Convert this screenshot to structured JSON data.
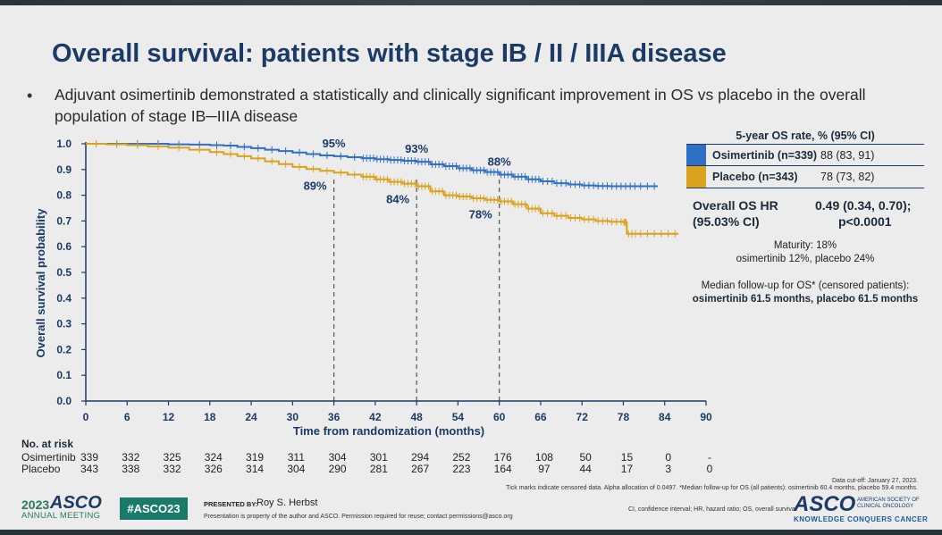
{
  "title": "Overall survival: patients with stage IB / II / IIIA disease",
  "bullet": "Adjuvant osimertinib demonstrated a statistically and clinically significant improvement in OS vs placebo in the overall population of stage IB─IIIA disease",
  "colors": {
    "osimertinib": "#2f6fc4",
    "placebo": "#d9a21f",
    "navy": "#1b3a66"
  },
  "chart_data": {
    "type": "line",
    "title": "Overall survival: patients with stage IB / II / IIIA disease",
    "xlabel": "Time from randomization (months)",
    "ylabel": "Overall survival probability",
    "xlim": [
      0,
      90
    ],
    "ylim": [
      0,
      1.0
    ],
    "x_ticks": [
      "0",
      "6",
      "12",
      "18",
      "24",
      "30",
      "36",
      "42",
      "48",
      "54",
      "60",
      "66",
      "72",
      "78",
      "84",
      "90"
    ],
    "y_ticks": [
      "0.0",
      "0.1",
      "0.2",
      "0.3",
      "0.4",
      "0.5",
      "0.6",
      "0.7",
      "0.8",
      "0.9",
      "1.0"
    ],
    "reference_lines_x": [
      36,
      48,
      60
    ],
    "series": [
      {
        "name": "Osimertinib",
        "x": [
          0,
          3,
          6,
          9,
          12,
          15,
          18,
          20,
          22,
          24,
          26,
          28,
          30,
          32,
          34,
          36,
          38,
          40,
          42,
          44,
          46,
          48,
          50,
          52,
          54,
          56,
          58,
          60,
          62,
          64,
          66,
          68,
          70,
          72,
          74,
          76,
          78,
          80,
          83
        ],
        "y": [
          1.0,
          1.0,
          1.0,
          1.0,
          0.998,
          0.997,
          0.995,
          0.993,
          0.988,
          0.983,
          0.977,
          0.972,
          0.966,
          0.96,
          0.955,
          0.952,
          0.948,
          0.944,
          0.94,
          0.937,
          0.934,
          0.93,
          0.92,
          0.913,
          0.905,
          0.897,
          0.89,
          0.88,
          0.872,
          0.862,
          0.854,
          0.847,
          0.842,
          0.838,
          0.836,
          0.835,
          0.835,
          0.835,
          0.835
        ]
      },
      {
        "name": "Placebo",
        "x": [
          0,
          3,
          6,
          9,
          12,
          15,
          18,
          20,
          22,
          24,
          26,
          28,
          30,
          32,
          34,
          36,
          38,
          40,
          42,
          44,
          46,
          48,
          50,
          52,
          54,
          56,
          58,
          60,
          62,
          64,
          66,
          68,
          70,
          72,
          74,
          76,
          78,
          78.5,
          80,
          83,
          86
        ],
        "y": [
          1.0,
          0.998,
          0.995,
          0.99,
          0.985,
          0.977,
          0.968,
          0.96,
          0.952,
          0.943,
          0.932,
          0.921,
          0.91,
          0.902,
          0.895,
          0.888,
          0.88,
          0.872,
          0.862,
          0.852,
          0.845,
          0.835,
          0.815,
          0.8,
          0.795,
          0.788,
          0.782,
          0.776,
          0.765,
          0.748,
          0.73,
          0.72,
          0.712,
          0.706,
          0.7,
          0.697,
          0.695,
          0.65,
          0.65,
          0.65,
          0.65
        ]
      }
    ],
    "annotations": [
      {
        "text": "95%",
        "x": 36,
        "y": 0.952,
        "series": "Osimertinib",
        "placement": "above"
      },
      {
        "text": "93%",
        "x": 48,
        "y": 0.93,
        "series": "Osimertinib",
        "placement": "above"
      },
      {
        "text": "88%",
        "x": 60,
        "y": 0.88,
        "series": "Osimertinib",
        "placement": "above"
      },
      {
        "text": "89%",
        "x": 36,
        "y": 0.888,
        "series": "Placebo",
        "placement": "below-left"
      },
      {
        "text": "84%",
        "x": 48,
        "y": 0.835,
        "series": "Placebo",
        "placement": "below-left"
      },
      {
        "text": "78%",
        "x": 60,
        "y": 0.776,
        "series": "Placebo",
        "placement": "below-left"
      }
    ]
  },
  "at_risk": {
    "title": "No. at risk",
    "timepoints": [
      0,
      6,
      12,
      18,
      24,
      30,
      36,
      42,
      48,
      54,
      60,
      66,
      72,
      78,
      84,
      90
    ],
    "rows": [
      {
        "label": "Osimertinib",
        "values": [
          "339",
          "332",
          "325",
          "324",
          "319",
          "311",
          "304",
          "301",
          "294",
          "252",
          "176",
          "108",
          "50",
          "15",
          "0",
          "-"
        ]
      },
      {
        "label": "Placebo",
        "values": [
          "343",
          "338",
          "332",
          "326",
          "314",
          "304",
          "290",
          "281",
          "267",
          "223",
          "164",
          "97",
          "44",
          "17",
          "3",
          "0"
        ]
      }
    ]
  },
  "os_table": {
    "header": "5-year OS rate, % (95% CI)",
    "rows": [
      {
        "name": "Osimertinib (n=339)",
        "value": "88 (83, 91)"
      },
      {
        "name": "Placebo (n=343)",
        "value": "78 (73, 82)"
      }
    ]
  },
  "hr": {
    "label_line1": "Overall OS HR",
    "label_line2": "(95.03% CI)",
    "value_line1": "0.49 (0.34, 0.70);",
    "value_line2": "p<0.0001"
  },
  "maturity": {
    "line1": "Maturity: 18%",
    "line2": "osimertinib 12%, placebo 24%"
  },
  "followup": {
    "line1": "Median follow-up for OS* (censored patients):",
    "line2": "osimertinib 61.5 months, placebo 61.5 months"
  },
  "footnotes": {
    "cutoff": "Data cut-off: January 27, 2023.",
    "ticks": "Tick marks indicate censored data. Alpha allocation of 0.0497. *Median follow-up for OS (all patients): osimertinib 60.4 months, placebo 59.4 months.",
    "abbrev": "CI, confidence interval; HR, hazard ratio; OS, overall survival"
  },
  "footer": {
    "year": "2023",
    "asco": "ASCO",
    "meeting": "ANNUAL MEETING",
    "hashtag": "#ASCO23",
    "presented_label": "PRESENTED BY:",
    "presenter": "Roy S. Herbst",
    "permission": "Presentation is property of the author and ASCO. Permission required for reuse; contact permissions@asco.org",
    "logo": "ASCO",
    "society": "AMERICAN SOCIETY OF CLINICAL ONCOLOGY",
    "tagline": "KNOWLEDGE CONQUERS CANCER"
  }
}
